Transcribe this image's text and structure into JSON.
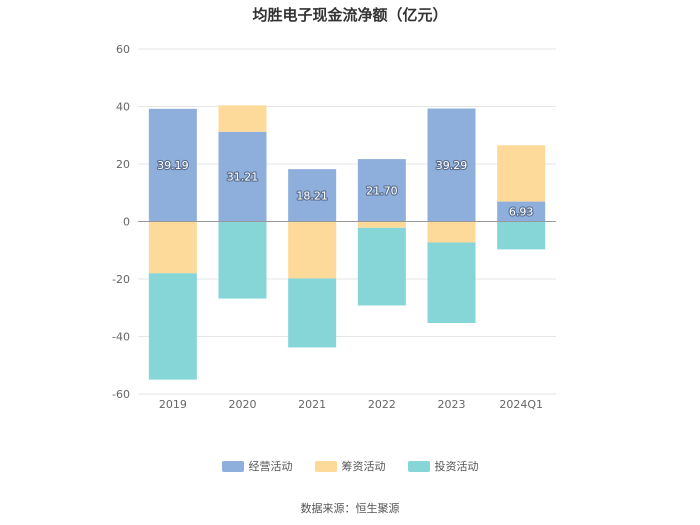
{
  "chart_data": {
    "type": "bar",
    "stacked": true,
    "title": "均胜电子现金流净额（亿元）",
    "categories": [
      "2019",
      "2020",
      "2021",
      "2022",
      "2023",
      "2024Q1"
    ],
    "series": [
      {
        "name": "经营活动",
        "color": "#8eaedc",
        "values": [
          39.19,
          31.21,
          18.21,
          21.7,
          39.29,
          6.93
        ]
      },
      {
        "name": "筹资活动",
        "color": "#fdd99a",
        "values": [
          -18.0,
          9.2,
          -19.8,
          -2.2,
          -7.3,
          19.6
        ]
      },
      {
        "name": "投资活动",
        "color": "#86d6d8",
        "values": [
          -37.0,
          -26.8,
          -24.0,
          -27.0,
          -28.0,
          -9.7
        ]
      }
    ],
    "data_labels": [
      "39.19",
      "31.21",
      "18.21",
      "21.70",
      "39.29",
      "6.93"
    ],
    "ylim": [
      -60,
      60
    ],
    "yticks": [
      -60,
      -40,
      -20,
      0,
      20,
      40,
      60
    ],
    "grid": true,
    "legend": "bottom-center",
    "xlabel": "",
    "ylabel": ""
  },
  "source": "数据来源：恒生聚源"
}
